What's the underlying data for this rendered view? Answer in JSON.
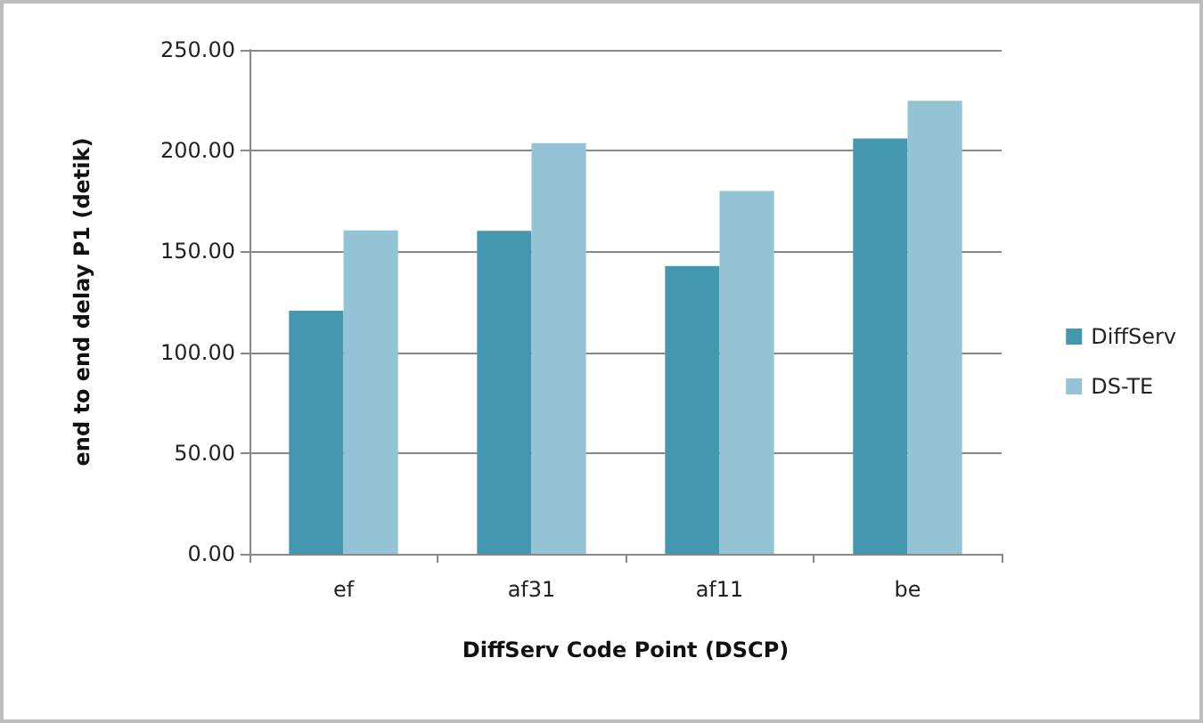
{
  "chart_data": {
    "type": "bar",
    "xlabel": "DiffServ Code Point (DSCP)",
    "ylabel": "end to end delay P1 (detik)",
    "categories": [
      "ef",
      "af31",
      "af11",
      "be"
    ],
    "series": [
      {
        "name": "DiffServ",
        "color": "#4398b0",
        "values": [
          120.6,
          160.2,
          142.8,
          206.0
        ]
      },
      {
        "name": "DS-TE",
        "color": "#93c3d5",
        "values": [
          160.4,
          203.7,
          180.0,
          224.7
        ]
      }
    ],
    "ylim": [
      0,
      250
    ],
    "yticks": [
      {
        "value": 0,
        "label": "0.00"
      },
      {
        "value": 50,
        "label": "50.00"
      },
      {
        "value": 100,
        "label": "100.00"
      },
      {
        "value": 150,
        "label": "150.00"
      },
      {
        "value": 200,
        "label": "200.00"
      },
      {
        "value": 250,
        "label": "250.00"
      }
    ],
    "grid": "y",
    "legend": "right"
  }
}
